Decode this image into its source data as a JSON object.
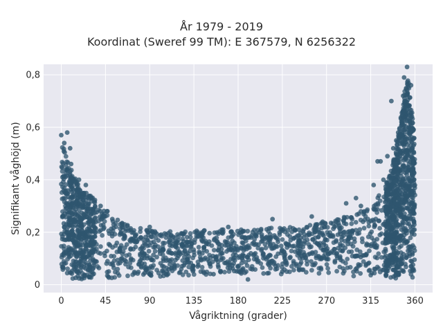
{
  "chart_data": {
    "type": "scatter",
    "title": "År 1979 - 2019",
    "subtitle": "Koordinat (Sweref 99 TM): E 367579, N 6256322",
    "xlabel": "Vågriktning (grader)",
    "ylabel": "Signifikant våghöjd (m)",
    "xlim": [
      -18,
      378
    ],
    "ylim": [
      -0.03,
      0.84
    ],
    "x_ticks": [
      0,
      45,
      90,
      135,
      180,
      225,
      270,
      315,
      360
    ],
    "y_ticks": [
      0,
      0.2,
      0.4,
      0.6,
      0.8
    ],
    "x_tick_labels": [
      "0",
      "45",
      "90",
      "135",
      "180",
      "225",
      "270",
      "315",
      "360"
    ],
    "y_tick_labels": [
      "0",
      "0,2",
      "0,4",
      "0,6",
      "0,8"
    ],
    "grid": true,
    "marker_color": "#2f566f",
    "background": "#e8e8f0",
    "series": [
      {
        "envelope_max": [
          {
            "x": 0,
            "y": 0.54
          },
          {
            "x": 5,
            "y": 0.5
          },
          {
            "x": 10,
            "y": 0.46
          },
          {
            "x": 15,
            "y": 0.4
          },
          {
            "x": 20,
            "y": 0.37
          },
          {
            "x": 30,
            "y": 0.34
          },
          {
            "x": 40,
            "y": 0.3
          },
          {
            "x": 50,
            "y": 0.27
          },
          {
            "x": 60,
            "y": 0.24
          },
          {
            "x": 75,
            "y": 0.22
          },
          {
            "x": 90,
            "y": 0.21
          },
          {
            "x": 120,
            "y": 0.2
          },
          {
            "x": 150,
            "y": 0.21
          },
          {
            "x": 180,
            "y": 0.21
          },
          {
            "x": 210,
            "y": 0.22
          },
          {
            "x": 240,
            "y": 0.22
          },
          {
            "x": 270,
            "y": 0.24
          },
          {
            "x": 290,
            "y": 0.26
          },
          {
            "x": 310,
            "y": 0.29
          },
          {
            "x": 320,
            "y": 0.32
          },
          {
            "x": 330,
            "y": 0.38
          },
          {
            "x": 335,
            "y": 0.43
          },
          {
            "x": 340,
            "y": 0.5
          },
          {
            "x": 345,
            "y": 0.62
          },
          {
            "x": 350,
            "y": 0.75
          },
          {
            "x": 353,
            "y": 0.8
          },
          {
            "x": 357,
            "y": 0.66
          },
          {
            "x": 360,
            "y": 0.54
          }
        ],
        "envelope_min": [
          {
            "x": 0,
            "y": 0.02
          },
          {
            "x": 45,
            "y": 0.02
          },
          {
            "x": 90,
            "y": 0.03
          },
          {
            "x": 180,
            "y": 0.04
          },
          {
            "x": 270,
            "y": 0.04
          },
          {
            "x": 330,
            "y": 0.02
          },
          {
            "x": 360,
            "y": 0.02
          }
        ],
        "outliers": [
          {
            "x": 0,
            "y": 0.57
          },
          {
            "x": 3,
            "y": 0.54
          },
          {
            "x": 6,
            "y": 0.58
          },
          {
            "x": 9,
            "y": 0.52
          },
          {
            "x": 10,
            "y": 0.46
          },
          {
            "x": 18,
            "y": 0.4
          },
          {
            "x": 25,
            "y": 0.38
          },
          {
            "x": 40,
            "y": 0.3
          },
          {
            "x": 47,
            "y": 0.28
          },
          {
            "x": 52,
            "y": 0.25
          },
          {
            "x": 60,
            "y": 0.23
          },
          {
            "x": 90,
            "y": 0.22
          },
          {
            "x": 155,
            "y": 0.04
          },
          {
            "x": 170,
            "y": 0.22
          },
          {
            "x": 190,
            "y": 0.02
          },
          {
            "x": 215,
            "y": 0.25
          },
          {
            "x": 225,
            "y": 0.05
          },
          {
            "x": 255,
            "y": 0.26
          },
          {
            "x": 266,
            "y": 0.24
          },
          {
            "x": 290,
            "y": 0.31
          },
          {
            "x": 300,
            "y": 0.33
          },
          {
            "x": 305,
            "y": 0.3
          },
          {
            "x": 318,
            "y": 0.38
          },
          {
            "x": 322,
            "y": 0.47
          },
          {
            "x": 325,
            "y": 0.47
          },
          {
            "x": 328,
            "y": 0.4
          },
          {
            "x": 332,
            "y": 0.49
          },
          {
            "x": 336,
            "y": 0.7
          },
          {
            "x": 338,
            "y": 0.52
          },
          {
            "x": 341,
            "y": 0.55
          },
          {
            "x": 343,
            "y": 0.58
          },
          {
            "x": 348,
            "y": 0.72
          },
          {
            "x": 349,
            "y": 0.79
          },
          {
            "x": 352,
            "y": 0.83
          },
          {
            "x": 356,
            "y": 0.76
          }
        ]
      }
    ]
  }
}
